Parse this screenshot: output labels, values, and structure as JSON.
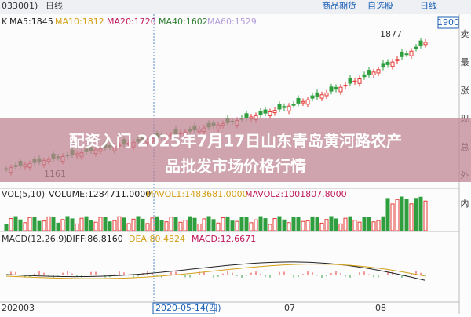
{
  "header": {
    "code": "033001)",
    "period": "日线",
    "menu": [
      "商品期货",
      "自选股",
      "日线"
    ]
  },
  "main": {
    "label": "K",
    "ma": [
      "MA5:1845",
      "MA10:1812",
      "MA20:1720",
      "MA40:1602",
      "MA60:1529"
    ],
    "price_box": "1900",
    "high_label": "1877",
    "low_label": "1161"
  },
  "side": [
    "卖",
    "最",
    "涨",
    "现",
    "总",
    "外",
    "内"
  ],
  "banner": {
    "title_line1": "配资入门 2025年7月17日山东青岛黄河路农产",
    "title_line2": "品批发市场价格行情"
  },
  "volume": {
    "labels": [
      "VOL(5,10)",
      "VOLUME:1284711.0000",
      "MAVOL1:1483681.0000",
      "MAVOL2:1001807.8000"
    ]
  },
  "macd": {
    "labels": [
      "MACD(12,26,9)",
      "DIFF:86.8160",
      "DEA:80.4824",
      "MACD:12.6671"
    ]
  },
  "xaxis": {
    "labels": [
      "202003",
      "2020-05-14(四)",
      "07",
      "08"
    ]
  }
}
